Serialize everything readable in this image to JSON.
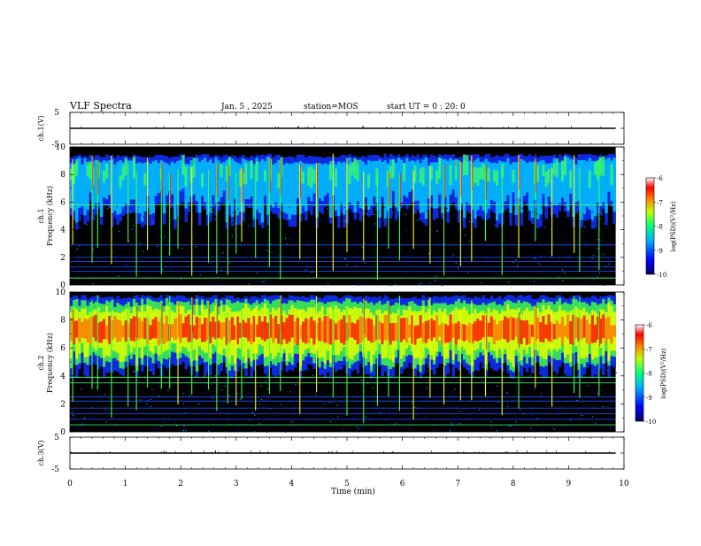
{
  "header": {
    "title": "VLF Spectra",
    "date": "Jan. 5 , 2025",
    "station": "station=MOS",
    "start_ut": "start UT =  0 : 20: 0"
  },
  "chart_data": {
    "type": "heatmap",
    "xlabel": "Time (min)",
    "x_ticks": [
      "0",
      "1",
      "2",
      "3",
      "4",
      "5",
      "6",
      "7",
      "8",
      "9",
      "10"
    ],
    "xlim": [
      0,
      10
    ],
    "data_end_min": 9.85,
    "panels": [
      {
        "id": "ch1-volt",
        "kind": "line",
        "ylabel": "ch.1(V)",
        "y_ticks": [
          "5",
          "-5"
        ],
        "ylim": [
          -5,
          5
        ],
        "level": 0
      },
      {
        "id": "ch1-spec",
        "kind": "spectrogram",
        "ylabel_line1": "ch.1",
        "ylabel_line2": "Frequency (kHz)",
        "y_ticks": [
          "0",
          "2",
          "4",
          "6",
          "8",
          "10"
        ],
        "ylim": [
          0,
          10
        ],
        "intense_band_khz": [
          6.0,
          9.5
        ],
        "line_freqs_khz": [
          0.5,
          1.0,
          1.3,
          1.7,
          2.0,
          2.9,
          5.8
        ],
        "colorbar": {
          "label": "log(PSD)(V²/Hz)",
          "ticks": [
            "-6",
            "-7",
            "-8",
            "-9",
            "-10"
          ],
          "range": [
            -10,
            -6
          ]
        }
      },
      {
        "id": "ch2-spec",
        "kind": "spectrogram",
        "ylabel_line1": "ch.2",
        "ylabel_line2": "Frequency (kHz)",
        "y_ticks": [
          "0",
          "2",
          "4",
          "6",
          "8",
          "10"
        ],
        "ylim": [
          0,
          10
        ],
        "intense_band_khz": [
          5.0,
          9.8
        ],
        "line_freqs_khz": [
          0.5,
          0.9,
          1.3,
          1.7,
          2.2,
          2.5,
          3.5,
          3.9
        ],
        "colorbar": {
          "label": "log(PSD)(V²/Hz)",
          "ticks": [
            "-6",
            "-7",
            "-8",
            "-9",
            "-10"
          ],
          "range": [
            -10,
            -6
          ]
        }
      },
      {
        "id": "ch3-volt",
        "kind": "line",
        "ylabel": "ch.3(V)",
        "y_ticks": [
          "5",
          "-5"
        ],
        "ylim": [
          -5,
          5
        ],
        "level": 0
      }
    ],
    "burst_times_min": [
      0.05,
      0.4,
      0.5,
      0.75,
      1.05,
      1.2,
      1.4,
      1.65,
      1.8,
      1.95,
      2.2,
      2.5,
      2.65,
      2.85,
      3.0,
      3.1,
      3.35,
      3.6,
      3.8,
      4.15,
      4.45,
      4.75,
      5.0,
      5.3,
      5.55,
      5.75,
      5.95,
      6.2,
      6.5,
      6.75,
      7.05,
      7.25,
      7.5,
      7.8,
      8.1,
      8.4,
      8.7,
      9.1,
      9.2,
      9.55
    ],
    "colors": {
      "background": "#000000",
      "low": "#0000aa",
      "mid": "#00ff66",
      "high": "#ff0000"
    }
  }
}
